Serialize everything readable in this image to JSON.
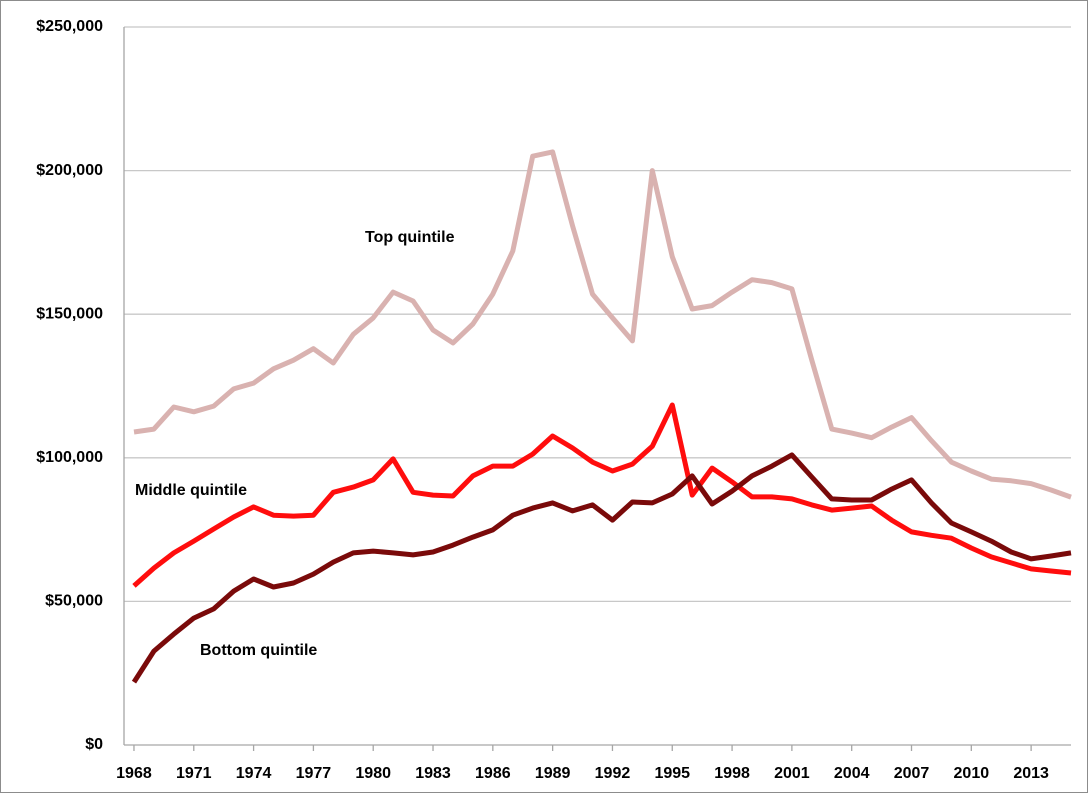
{
  "chart_data": {
    "type": "line",
    "x": [
      1968,
      1969,
      1970,
      1971,
      1972,
      1973,
      1974,
      1975,
      1976,
      1977,
      1978,
      1979,
      1980,
      1981,
      1982,
      1983,
      1984,
      1985,
      1986,
      1987,
      1988,
      1989,
      1990,
      1991,
      1992,
      1993,
      1994,
      1995,
      1996,
      1997,
      1998,
      1999,
      2000,
      2001,
      2002,
      2003,
      2004,
      2005,
      2006,
      2007,
      2008,
      2009,
      2010,
      2011,
      2012,
      2013,
      2014,
      2015
    ],
    "series": [
      {
        "name": "Top quintile",
        "color": "#d9b2b0",
        "values": [
          109000,
          110000,
          117700,
          116000,
          118000,
          124000,
          126000,
          131000,
          134000,
          138000,
          133000,
          143000,
          148700,
          157700,
          154600,
          144500,
          140000,
          146600,
          157000,
          172000,
          205000,
          206500,
          180700,
          157000,
          148700,
          140700,
          200000,
          170000,
          151800,
          153000,
          157700,
          162000,
          161000,
          158800,
          134000,
          110000,
          108600,
          107000,
          110700,
          114000,
          106000,
          98500,
          95400,
          92600,
          92000,
          91000,
          88800,
          86300
        ]
      },
      {
        "name": "Middle quintile",
        "color": "#ff0d0d",
        "values": [
          55400,
          61600,
          66900,
          71000,
          75200,
          79400,
          82900,
          80000,
          79700,
          80000,
          88000,
          89800,
          92300,
          99600,
          88000,
          87000,
          86700,
          93700,
          97100,
          97100,
          101300,
          107600,
          103400,
          98500,
          95400,
          97800,
          104000,
          118400,
          87000,
          96400,
          91600,
          86400,
          86400,
          85700,
          83600,
          81800,
          82500,
          83200,
          78300,
          74200,
          73000,
          72000,
          68600,
          65500,
          63400,
          61300,
          60600,
          59900
        ]
      },
      {
        "name": "Bottom quintile",
        "color": "#7a0a0a",
        "values": [
          21900,
          32700,
          38600,
          44200,
          47400,
          53600,
          57800,
          55000,
          56400,
          59500,
          63700,
          66900,
          67500,
          66900,
          66200,
          67200,
          69600,
          72400,
          74900,
          80000,
          82500,
          84300,
          81500,
          83600,
          78300,
          84600,
          84300,
          87400,
          93700,
          83900,
          88400,
          93700,
          97100,
          101000,
          93300,
          85700,
          85300,
          85300,
          89100,
          92300,
          84300,
          77300,
          74200,
          71000,
          67200,
          64800,
          65800,
          66900
        ]
      }
    ],
    "xlim": [
      1967.5,
      2015
    ],
    "xticks": [
      1968,
      1971,
      1974,
      1977,
      1980,
      1983,
      1986,
      1989,
      1992,
      1995,
      1998,
      2001,
      2004,
      2007,
      2010,
      2013
    ],
    "ylim": [
      0,
      250000
    ],
    "yticks": [
      {
        "value": 0,
        "label": "$0"
      },
      {
        "value": 50000,
        "label": "$50,000"
      },
      {
        "value": 100000,
        "label": "$100,000"
      },
      {
        "value": 150000,
        "label": "$150,000"
      },
      {
        "value": 200000,
        "label": "$200,000"
      },
      {
        "value": 250000,
        "label": "$250,000"
      }
    ],
    "grid": true
  }
}
